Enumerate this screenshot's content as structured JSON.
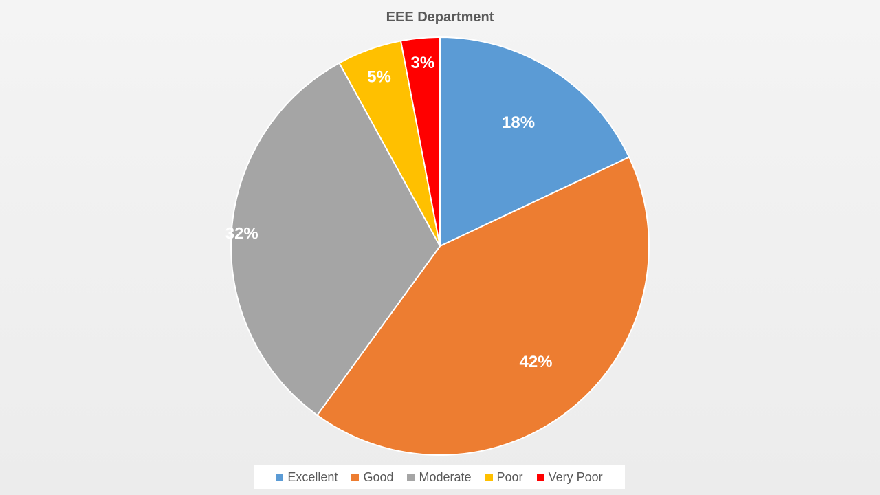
{
  "chart_data": {
    "type": "pie",
    "title": "EEE Department",
    "categories": [
      "Excellent",
      "Good",
      "Moderate",
      "Poor",
      "Very Poor"
    ],
    "values": [
      18,
      42,
      32,
      5,
      3
    ],
    "data_labels": [
      "18%",
      "42%",
      "32%",
      "5%",
      "3%"
    ],
    "colors": [
      "#5b9bd5",
      "#ed7d31",
      "#a5a5a5",
      "#ffc000",
      "#ff0000"
    ],
    "legend_position": "bottom"
  }
}
